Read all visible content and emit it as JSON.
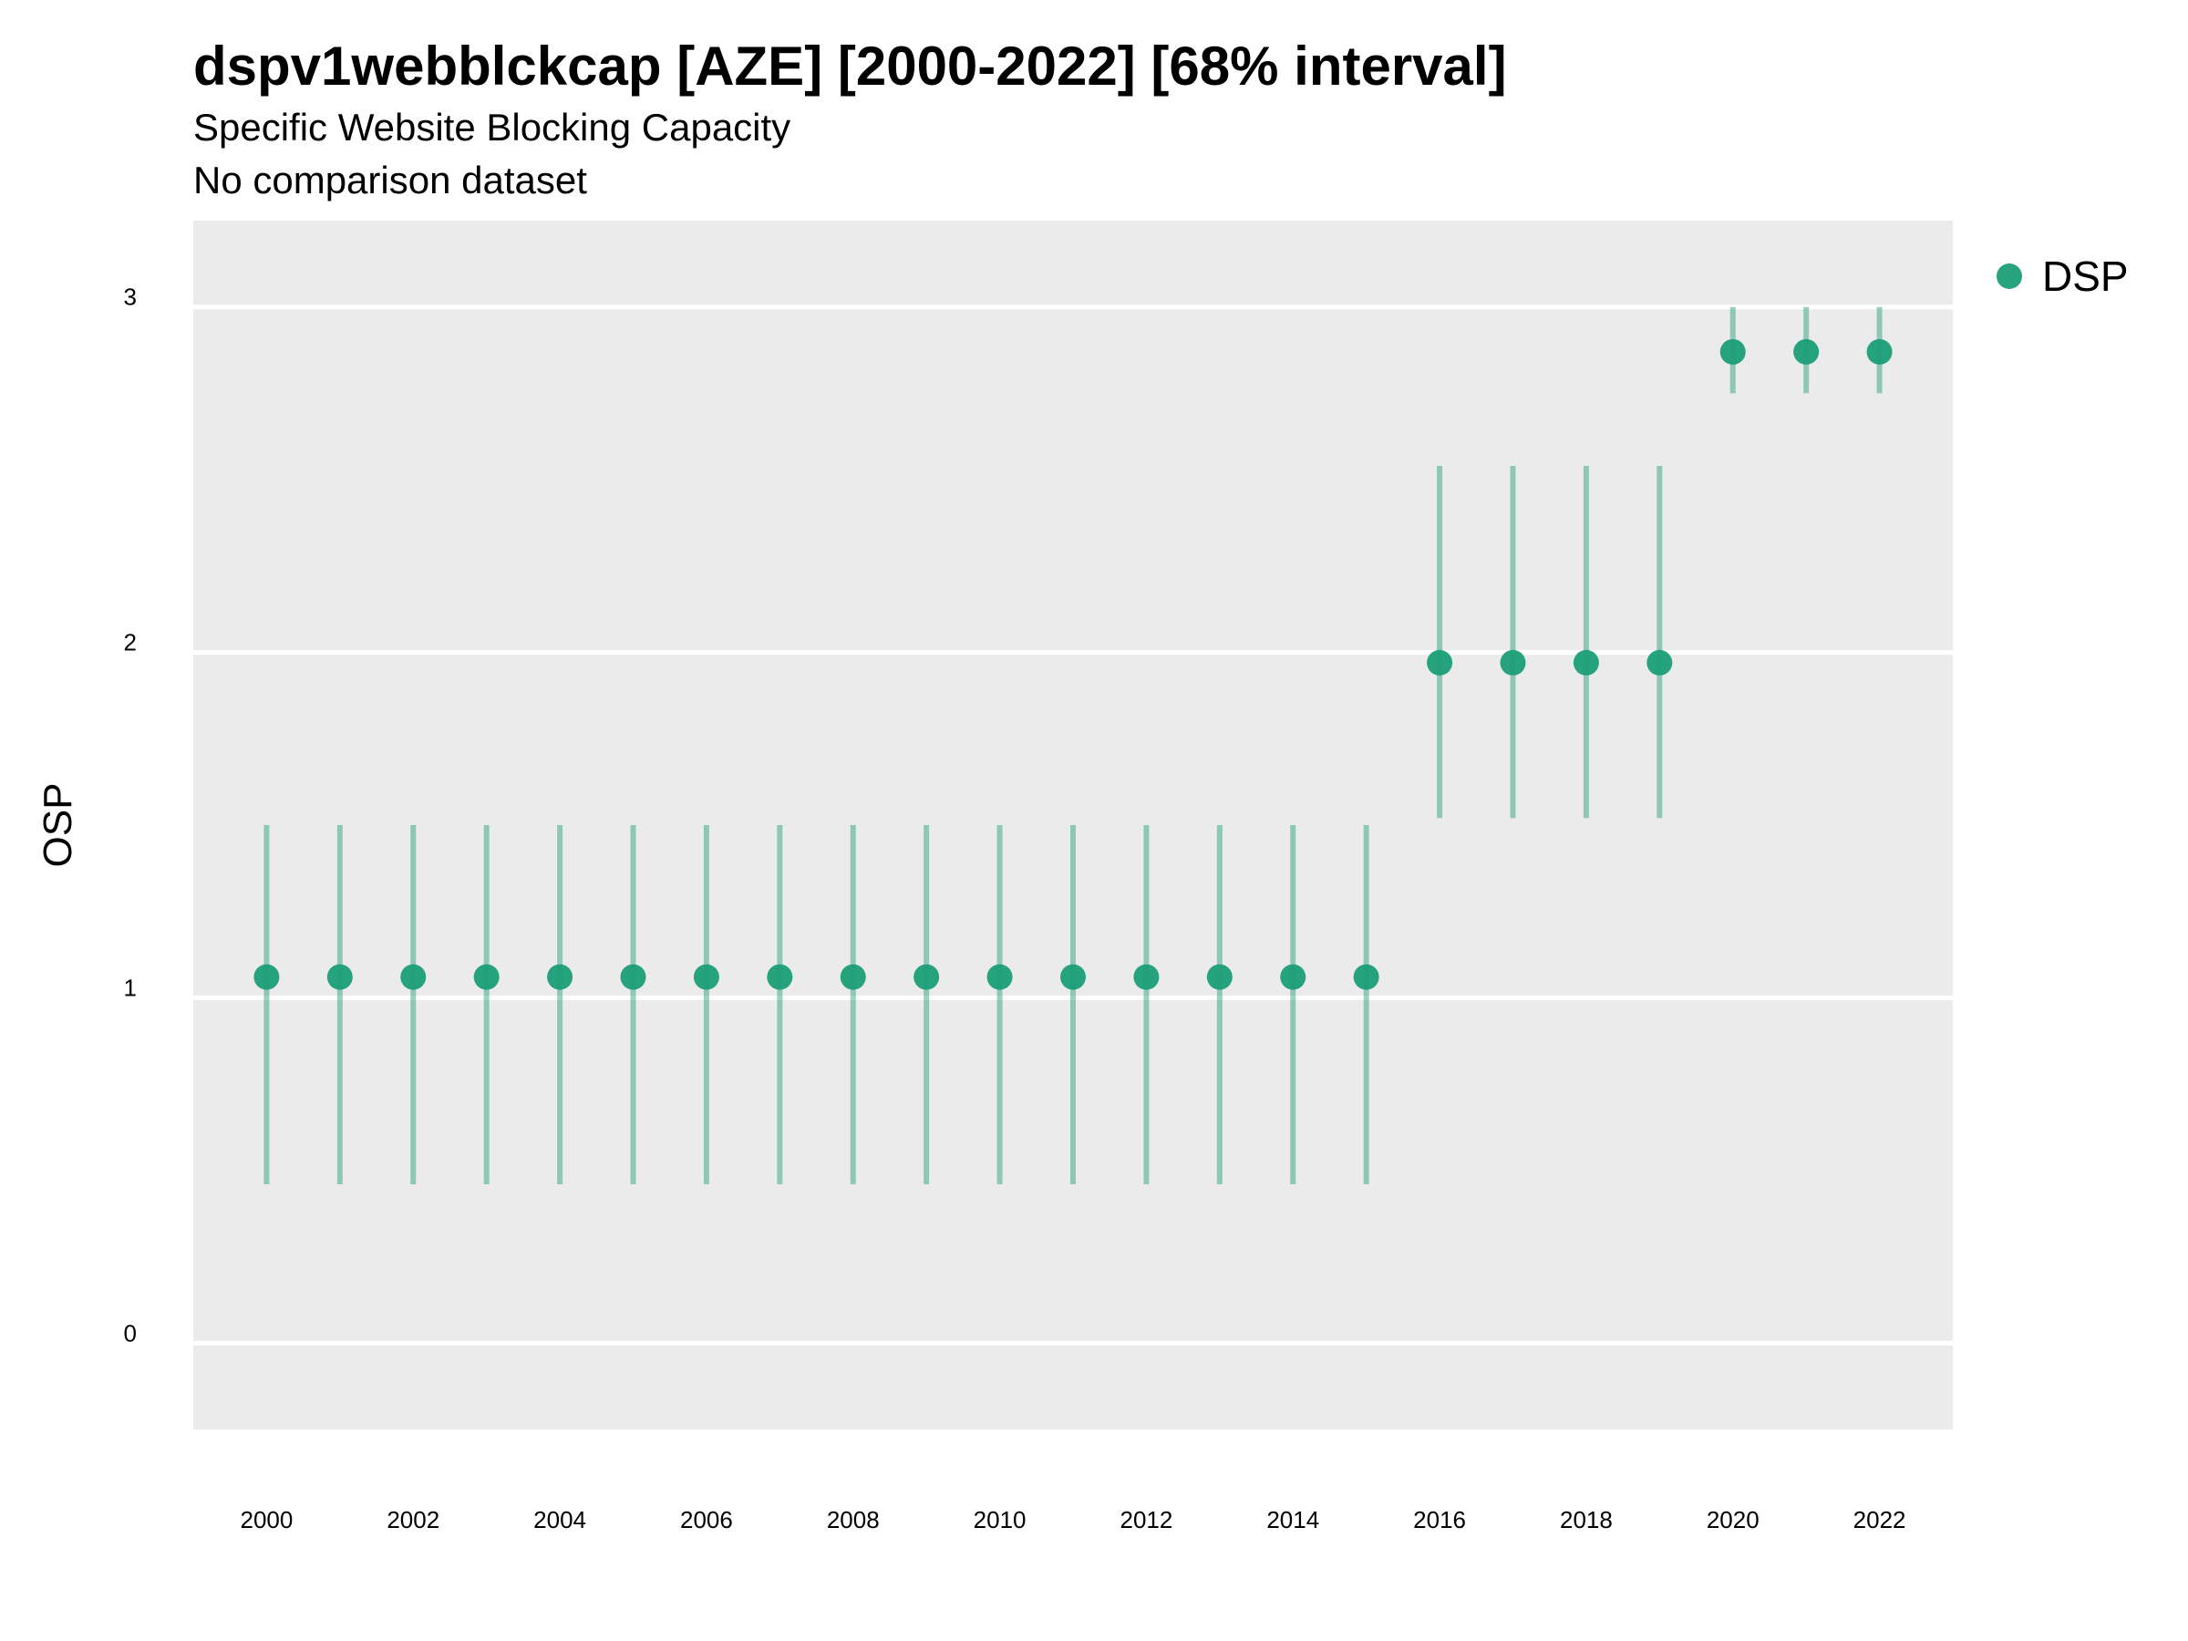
{
  "chart_data": {
    "type": "scatter",
    "title": "dspv1webblckcap [AZE] [2000-2022] [68% interval]",
    "subtitle": "Specific Website Blocking Capacity",
    "caption": "No comparison dataset",
    "xlabel": "",
    "ylabel": "OSP",
    "xlim": [
      1999,
      2023
    ],
    "ylim": [
      -0.25,
      3.25
    ],
    "x_ticks": [
      "2000",
      "2002",
      "2004",
      "2006",
      "2008",
      "2010",
      "2012",
      "2014",
      "2016",
      "2018",
      "2020",
      "2022"
    ],
    "y_ticks": [
      "0",
      "1",
      "2",
      "3"
    ],
    "grid": true,
    "legend_position": "right",
    "series": [
      {
        "name": "DSP",
        "color": "#1b9e77",
        "points": [
          {
            "x": 2000,
            "y": 1.06,
            "lo": 0.46,
            "hi": 1.5
          },
          {
            "x": 2001,
            "y": 1.06,
            "lo": 0.46,
            "hi": 1.5
          },
          {
            "x": 2002,
            "y": 1.06,
            "lo": 0.46,
            "hi": 1.5
          },
          {
            "x": 2003,
            "y": 1.06,
            "lo": 0.46,
            "hi": 1.5
          },
          {
            "x": 2004,
            "y": 1.06,
            "lo": 0.46,
            "hi": 1.5
          },
          {
            "x": 2005,
            "y": 1.06,
            "lo": 0.46,
            "hi": 1.5
          },
          {
            "x": 2006,
            "y": 1.06,
            "lo": 0.46,
            "hi": 1.5
          },
          {
            "x": 2007,
            "y": 1.06,
            "lo": 0.46,
            "hi": 1.5
          },
          {
            "x": 2008,
            "y": 1.06,
            "lo": 0.46,
            "hi": 1.5
          },
          {
            "x": 2009,
            "y": 1.06,
            "lo": 0.46,
            "hi": 1.5
          },
          {
            "x": 2010,
            "y": 1.06,
            "lo": 0.46,
            "hi": 1.5
          },
          {
            "x": 2011,
            "y": 1.06,
            "lo": 0.46,
            "hi": 1.5
          },
          {
            "x": 2012,
            "y": 1.06,
            "lo": 0.46,
            "hi": 1.5
          },
          {
            "x": 2013,
            "y": 1.06,
            "lo": 0.46,
            "hi": 1.5
          },
          {
            "x": 2014,
            "y": 1.06,
            "lo": 0.46,
            "hi": 1.5
          },
          {
            "x": 2015,
            "y": 1.06,
            "lo": 0.46,
            "hi": 1.5
          },
          {
            "x": 2016,
            "y": 1.97,
            "lo": 1.52,
            "hi": 2.54
          },
          {
            "x": 2017,
            "y": 1.97,
            "lo": 1.52,
            "hi": 2.54
          },
          {
            "x": 2018,
            "y": 1.97,
            "lo": 1.52,
            "hi": 2.54
          },
          {
            "x": 2019,
            "y": 1.97,
            "lo": 1.52,
            "hi": 2.54
          },
          {
            "x": 2020,
            "y": 2.87,
            "lo": 2.75,
            "hi": 3.0
          },
          {
            "x": 2021,
            "y": 2.87,
            "lo": 2.75,
            "hi": 3.0
          },
          {
            "x": 2022,
            "y": 2.87,
            "lo": 2.75,
            "hi": 3.0
          }
        ]
      }
    ]
  }
}
